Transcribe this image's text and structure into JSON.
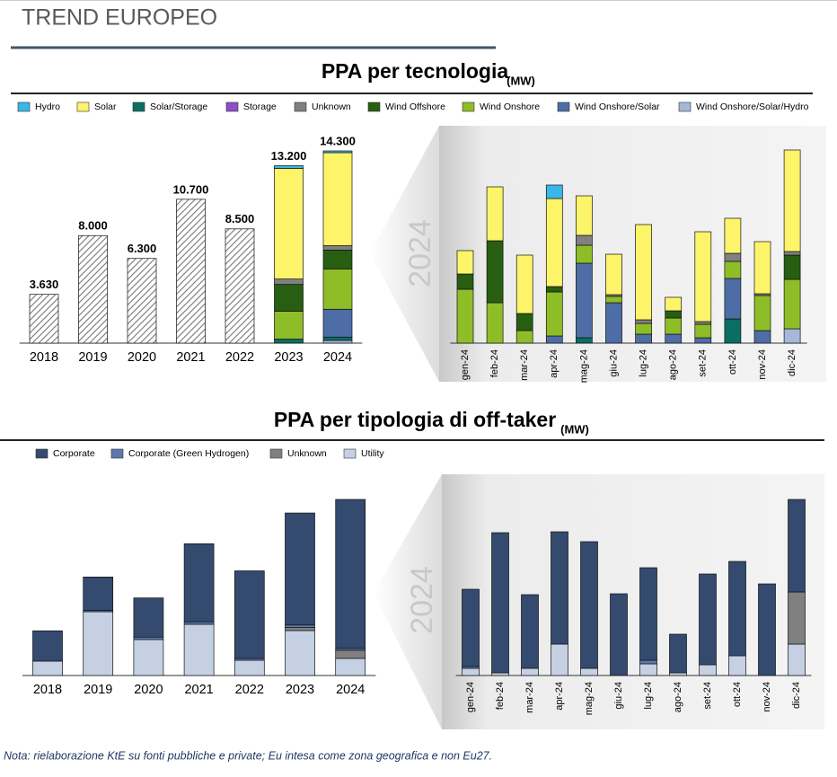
{
  "header": {
    "title": "TREND EUROPEO"
  },
  "chart_data": [
    {
      "type": "bar",
      "stacked": true,
      "title": "PPA per tecnologia",
      "unit": "(MW)",
      "categories": [
        "2018",
        "2019",
        "2020",
        "2021",
        "2022",
        "2023",
        "2024"
      ],
      "values": [
        3630,
        8000,
        6300,
        10700,
        8500,
        13200,
        14300
      ],
      "value_labels": [
        "3.630",
        "8.000",
        "6.300",
        "10.700",
        "8.500",
        "13.200",
        "14.300"
      ],
      "series": [
        {
          "name": "Hydro",
          "color": "#3bb6e8",
          "values": [
            null,
            null,
            null,
            null,
            null,
            200,
            130
          ]
        },
        {
          "name": "Solar",
          "color": "#fef46a",
          "values": [
            null,
            null,
            null,
            null,
            null,
            8230,
            6920
          ]
        },
        {
          "name": "Solar/Storage",
          "color": "#0b6e62",
          "values": [
            null,
            null,
            null,
            null,
            null,
            300,
            250
          ]
        },
        {
          "name": "Storage",
          "color": "#8e4fc9",
          "values": [
            null,
            null,
            null,
            null,
            null,
            0,
            0
          ]
        },
        {
          "name": "Unknown",
          "color": "#808080",
          "values": [
            null,
            null,
            null,
            null,
            null,
            400,
            330
          ]
        },
        {
          "name": "Wind Offshore",
          "color": "#275e12",
          "values": [
            null,
            null,
            null,
            null,
            null,
            2000,
            1400
          ]
        },
        {
          "name": "Wind Onshore",
          "color": "#8fbd27",
          "values": [
            null,
            null,
            null,
            null,
            null,
            2070,
            3000
          ]
        },
        {
          "name": "Wind Onshore/Solar",
          "color": "#4e6da6",
          "values": [
            null,
            null,
            null,
            null,
            null,
            0,
            2070
          ]
        },
        {
          "name": "Wind Onshore/Solar/Hydro",
          "color": "#a5b8d8",
          "values": [
            null,
            null,
            null,
            null,
            null,
            0,
            200
          ]
        }
      ]
    },
    {
      "type": "bar",
      "stacked": true,
      "label": "2024",
      "categories": [
        "gen-24",
        "feb-24",
        "mar-24",
        "apr-24",
        "mag-24",
        "giu-24",
        "lug-24",
        "ago-24",
        "set-24",
        "ott-24",
        "nov-24",
        "dic-24"
      ],
      "series": [
        {
          "values": [
            0,
            0,
            0,
            135,
            0,
            0,
            0,
            0,
            0,
            0,
            0,
            0
          ]
        },
        {
          "values": [
            234,
            540,
            585,
            882,
            396,
            405,
            954,
            135,
            900,
            351,
            522,
            1017
          ]
        },
        {
          "values": [
            0,
            0,
            0,
            0,
            54,
            0,
            0,
            0,
            0,
            243,
            0,
            0
          ]
        },
        {
          "values": [
            0,
            0,
            0,
            0,
            0,
            0,
            0,
            0,
            0,
            0,
            0,
            0
          ]
        },
        {
          "values": [
            0,
            0,
            0,
            0,
            99,
            18,
            36,
            0,
            27,
            81,
            18,
            36
          ]
        },
        {
          "values": [
            153,
            621,
            171,
            54,
            0,
            0,
            0,
            72,
            0,
            0,
            0,
            243
          ]
        },
        {
          "values": [
            540,
            405,
            126,
            441,
            180,
            63,
            108,
            162,
            135,
            171,
            351,
            495
          ]
        },
        {
          "values": [
            0,
            0,
            0,
            72,
            747,
            405,
            90,
            90,
            54,
            405,
            126,
            0
          ]
        },
        {
          "values": [
            0,
            0,
            0,
            0,
            0,
            0,
            0,
            0,
            0,
            0,
            0,
            144
          ]
        }
      ]
    },
    {
      "type": "bar",
      "stacked": true,
      "title": "PPA per tipologia di off-taker",
      "unit": "(MW)",
      "categories": [
        "2018",
        "2019",
        "2020",
        "2021",
        "2022",
        "2023",
        "2024"
      ],
      "series": [
        {
          "name": "Corporate",
          "color": "#344a6e",
          "values": [
            2460,
            2710,
            3180,
            6340,
            7110,
            9100,
            12100
          ]
        },
        {
          "name": "Corporate (Green Hydrogen)",
          "color": "#5b79ad",
          "values": [
            0,
            110,
            200,
            200,
            150,
            200,
            150
          ]
        },
        {
          "name": "Unknown",
          "color": "#808080",
          "values": [
            0,
            0,
            0,
            0,
            0,
            250,
            660
          ]
        },
        {
          "name": "Utility",
          "color": "#c5d0e3",
          "values": [
            1170,
            5180,
            2920,
            4160,
            1240,
            3650,
            1390
          ]
        }
      ]
    },
    {
      "type": "bar",
      "stacked": true,
      "label": "2024",
      "categories": [
        "gen-24",
        "feb-24",
        "mar-24",
        "apr-24",
        "mag-24",
        "giu-24",
        "lug-24",
        "ago-24",
        "set-24",
        "ott-24",
        "nov-24",
        "dic-24"
      ],
      "series": [
        {
          "values": [
            860,
            1560,
            820,
            1250,
            1410,
            910,
            1030,
            430,
            1010,
            1050,
            1020,
            1030
          ]
        },
        {
          "values": [
            20,
            0,
            0,
            0,
            0,
            0,
            40,
            0,
            0,
            0,
            0,
            0
          ]
        },
        {
          "values": [
            0,
            0,
            0,
            0,
            0,
            0,
            0,
            0,
            0,
            0,
            0,
            580
          ]
        },
        {
          "values": [
            80,
            30,
            80,
            350,
            80,
            0,
            130,
            30,
            120,
            220,
            0,
            350
          ]
        }
      ]
    }
  ],
  "note": "Nota: rielaborazione KtE su fonti pubbliche e private; Eu intesa come zona geografica e non Eu27."
}
